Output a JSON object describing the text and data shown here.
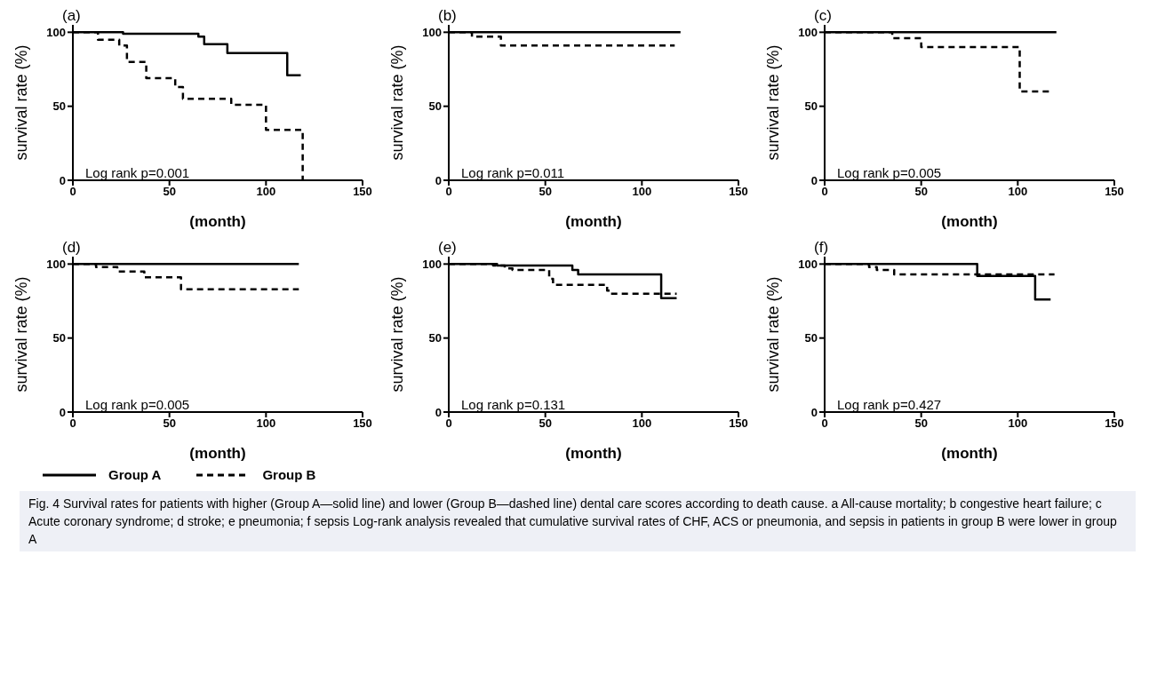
{
  "chart_data": [
    {
      "type": "step",
      "title": "(a)",
      "xlabel": "(month)",
      "ylabel": "survival rate (%)",
      "xlim": [
        0,
        150
      ],
      "xticks": [
        0,
        50,
        100,
        150
      ],
      "ylim": [
        0,
        105
      ],
      "yticks": [
        0,
        50,
        100
      ],
      "grid": false,
      "marker": "none",
      "legend": "bottom",
      "annotations": [
        "Log rank  p=0.001"
      ],
      "series": [
        {
          "name": "Group A",
          "color": "#000000",
          "line_style": "solid",
          "x": [
            0,
            26,
            65,
            68,
            80,
            111,
            118
          ],
          "values": [
            100,
            99,
            97,
            92,
            86,
            71,
            71
          ]
        },
        {
          "name": "Group B",
          "color": "#000000",
          "line_style": "dashed",
          "x": [
            0,
            13,
            24,
            28,
            38,
            53,
            57,
            82,
            100,
            119
          ],
          "values": [
            100,
            95,
            91,
            80,
            69,
            63,
            55,
            51,
            34,
            0
          ]
        }
      ]
    },
    {
      "type": "step",
      "title": "(b)",
      "xlabel": "(month)",
      "ylabel": "survival rate (%)",
      "xlim": [
        0,
        150
      ],
      "xticks": [
        0,
        50,
        100,
        150
      ],
      "ylim": [
        0,
        105
      ],
      "yticks": [
        0,
        50,
        100
      ],
      "grid": false,
      "marker": "none",
      "legend": "bottom",
      "annotations": [
        "Log rank  p=0.011"
      ],
      "series": [
        {
          "name": "Group A",
          "color": "#000000",
          "line_style": "solid",
          "x": [
            0,
            120
          ],
          "values": [
            100,
            100
          ]
        },
        {
          "name": "Group B",
          "color": "#000000",
          "line_style": "dashed",
          "x": [
            0,
            12,
            27,
            117
          ],
          "values": [
            100,
            97,
            91,
            91
          ]
        }
      ]
    },
    {
      "type": "step",
      "title": "(c)",
      "xlabel": "(month)",
      "ylabel": "survival rate (%)",
      "xlim": [
        0,
        150
      ],
      "xticks": [
        0,
        50,
        100,
        150
      ],
      "ylim": [
        0,
        105
      ],
      "yticks": [
        0,
        50,
        100
      ],
      "grid": false,
      "marker": "none",
      "legend": "bottom",
      "annotations": [
        "Log rank  p=0.005"
      ],
      "series": [
        {
          "name": "Group A",
          "color": "#000000",
          "line_style": "solid",
          "x": [
            0,
            120
          ],
          "values": [
            100,
            100
          ]
        },
        {
          "name": "Group B",
          "color": "#000000",
          "line_style": "dashed",
          "x": [
            0,
            35,
            50,
            101,
            117
          ],
          "values": [
            100,
            96,
            90,
            60,
            60
          ]
        }
      ]
    },
    {
      "type": "step",
      "title": "(d)",
      "xlabel": "(month)",
      "ylabel": "survival rate (%)",
      "xlim": [
        0,
        150
      ],
      "xticks": [
        0,
        50,
        100,
        150
      ],
      "ylim": [
        0,
        105
      ],
      "yticks": [
        0,
        50,
        100
      ],
      "grid": false,
      "marker": "none",
      "legend": "bottom",
      "annotations": [
        "Log rank  p=0.005"
      ],
      "series": [
        {
          "name": "Group A",
          "color": "#000000",
          "line_style": "solid",
          "x": [
            0,
            117
          ],
          "values": [
            100,
            100
          ]
        },
        {
          "name": "Group B",
          "color": "#000000",
          "line_style": "dashed",
          "x": [
            0,
            12,
            23,
            37,
            56,
            117
          ],
          "values": [
            100,
            98,
            95,
            91,
            83,
            83
          ]
        }
      ]
    },
    {
      "type": "step",
      "title": "(e)",
      "xlabel": "(month)",
      "ylabel": "survival rate (%)",
      "xlim": [
        0,
        150
      ],
      "xticks": [
        0,
        50,
        100,
        150
      ],
      "ylim": [
        0,
        105
      ],
      "yticks": [
        0,
        50,
        100
      ],
      "grid": false,
      "marker": "none",
      "legend": "bottom",
      "annotations": [
        "Log rank  p=0.131"
      ],
      "series": [
        {
          "name": "Group A",
          "color": "#000000",
          "line_style": "solid",
          "x": [
            0,
            25,
            64,
            67,
            110,
            118
          ],
          "values": [
            100,
            99,
            96,
            93,
            77,
            77
          ]
        },
        {
          "name": "Group B",
          "color": "#000000",
          "line_style": "dashed",
          "x": [
            0,
            23,
            29,
            33,
            52,
            54,
            82,
            84,
            118
          ],
          "values": [
            100,
            99,
            97,
            96,
            90,
            86,
            82,
            80,
            80
          ]
        }
      ]
    },
    {
      "type": "step",
      "title": "(f)",
      "xlabel": "(month)",
      "ylabel": "survival rate (%)",
      "xlim": [
        0,
        150
      ],
      "xticks": [
        0,
        50,
        100,
        150
      ],
      "ylim": [
        0,
        105
      ],
      "yticks": [
        0,
        50,
        100
      ],
      "grid": false,
      "marker": "none",
      "legend": "bottom",
      "annotations": [
        "Log rank  p=0.427",
        "Fig. 4  Survival rates for patients with higher (Group A—solid line) and lower (Group B—dashed line) dental care scores according to death cause. a All-cause mortality; b congestive heart failure; c Acute coronary syndrome; d stroke; e pneumonia; f sepsis Log-rank analysis revealed that cumulative survival rates of CHF, ACS or pneumonia, and sepsis in patients in group B were lower in group A"
      ],
      "series": [
        {
          "name": "Group A",
          "color": "#000000",
          "line_style": "solid",
          "x": [
            0,
            79,
            109,
            117
          ],
          "values": [
            100,
            92,
            76,
            76
          ]
        },
        {
          "name": "Group B",
          "color": "#000000",
          "line_style": "dashed",
          "x": [
            0,
            23,
            27,
            36,
            119
          ],
          "values": [
            100,
            98,
            96,
            93,
            93
          ]
        }
      ]
    }
  ]
}
